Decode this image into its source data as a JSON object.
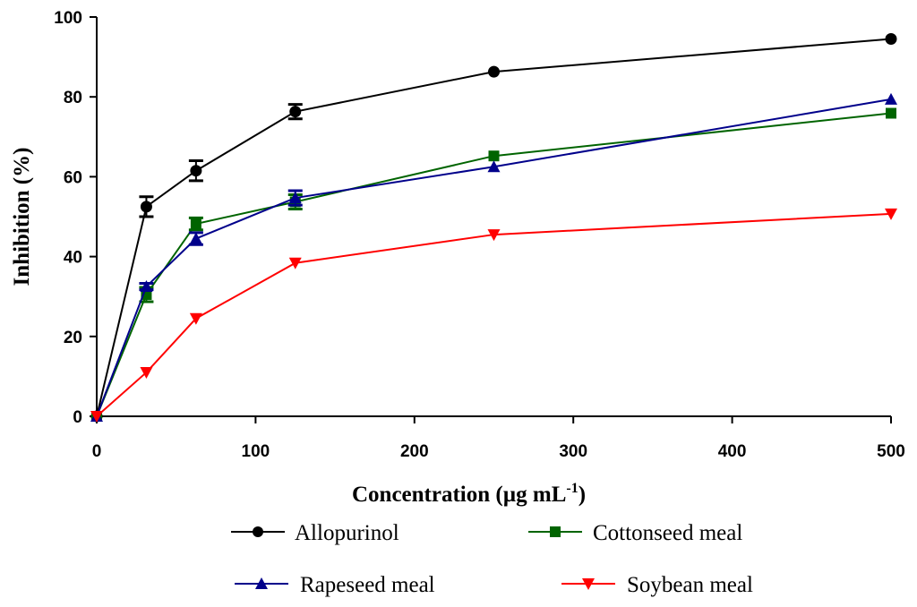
{
  "chart_data": {
    "type": "line",
    "xlabel": "Concentration (µg mL",
    "xlabel_sup": "-1",
    "xlabel_close": ")",
    "ylabel": "Inhibition (%)",
    "xlim": [
      0,
      500
    ],
    "ylim": [
      0,
      100
    ],
    "xticks": [
      0,
      100,
      200,
      300,
      400,
      500
    ],
    "yticks": [
      0,
      20,
      40,
      60,
      80,
      100
    ],
    "x": [
      0,
      31.25,
      62.5,
      125,
      250,
      500
    ],
    "series": [
      {
        "name": "Allopurinol",
        "color": "#000000",
        "marker": "circle",
        "values": [
          0,
          52.5,
          61.5,
          76.3,
          86.3,
          94.5
        ],
        "errors": [
          0,
          2.5,
          2.5,
          1.8,
          0,
          0
        ]
      },
      {
        "name": "Cottonseed meal",
        "color": "#006400",
        "marker": "square",
        "values": [
          0,
          30.5,
          48.2,
          53.7,
          65.2,
          75.9
        ],
        "errors": [
          0,
          1.8,
          1.5,
          1.8,
          0,
          0
        ]
      },
      {
        "name": "Rapeseed meal",
        "color": "#00008B",
        "marker": "triangle-up",
        "values": [
          0,
          32.5,
          44.5,
          54.7,
          62.5,
          79.4
        ],
        "errors": [
          0,
          0.8,
          1.5,
          1.8,
          0,
          0
        ]
      },
      {
        "name": "Soybean meal",
        "color": "#FF0000",
        "marker": "triangle-down",
        "values": [
          0,
          11,
          24.5,
          38.4,
          45.5,
          50.7
        ],
        "errors": [
          0,
          0,
          0,
          0,
          0,
          0
        ]
      }
    ],
    "legend": {
      "placement": "bottom",
      "columns": 2
    }
  }
}
